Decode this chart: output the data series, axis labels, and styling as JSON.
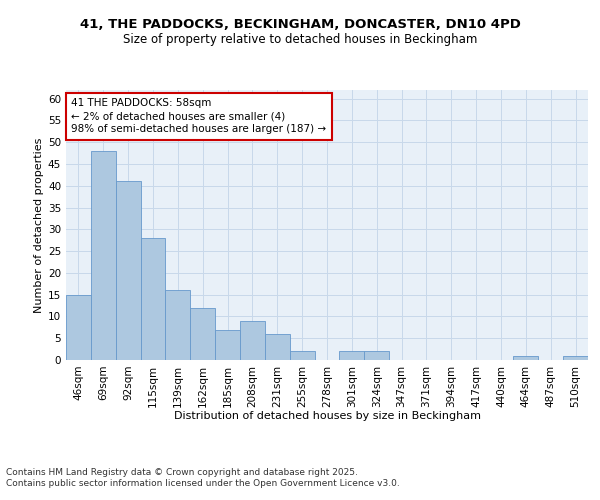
{
  "title1": "41, THE PADDOCKS, BECKINGHAM, DONCASTER, DN10 4PD",
  "title2": "Size of property relative to detached houses in Beckingham",
  "xlabel": "Distribution of detached houses by size in Beckingham",
  "ylabel": "Number of detached properties",
  "categories": [
    "46sqm",
    "69sqm",
    "92sqm",
    "115sqm",
    "139sqm",
    "162sqm",
    "185sqm",
    "208sqm",
    "231sqm",
    "255sqm",
    "278sqm",
    "301sqm",
    "324sqm",
    "347sqm",
    "371sqm",
    "394sqm",
    "417sqm",
    "440sqm",
    "464sqm",
    "487sqm",
    "510sqm"
  ],
  "values": [
    15,
    48,
    41,
    28,
    16,
    12,
    7,
    9,
    6,
    2,
    0,
    2,
    2,
    0,
    0,
    0,
    0,
    0,
    1,
    0,
    1
  ],
  "bar_color": "#adc8e0",
  "bar_edge_color": "#6699cc",
  "grid_color": "#c8d8ea",
  "background_color": "#e8f0f8",
  "annotation_line1": "41 THE PADDOCKS: 58sqm",
  "annotation_line2": "← 2% of detached houses are smaller (4)",
  "annotation_line3": "98% of semi-detached houses are larger (187) →",
  "annotation_box_color": "#ffffff",
  "annotation_box_edge": "#cc0000",
  "ylim": [
    0,
    62
  ],
  "yticks": [
    0,
    5,
    10,
    15,
    20,
    25,
    30,
    35,
    40,
    45,
    50,
    55,
    60
  ],
  "footer1": "Contains HM Land Registry data © Crown copyright and database right 2025.",
  "footer2": "Contains public sector information licensed under the Open Government Licence v3.0.",
  "title_fontsize": 9.5,
  "subtitle_fontsize": 8.5,
  "axis_label_fontsize": 8,
  "tick_fontsize": 7.5,
  "annotation_fontsize": 7.5,
  "footer_fontsize": 6.5
}
